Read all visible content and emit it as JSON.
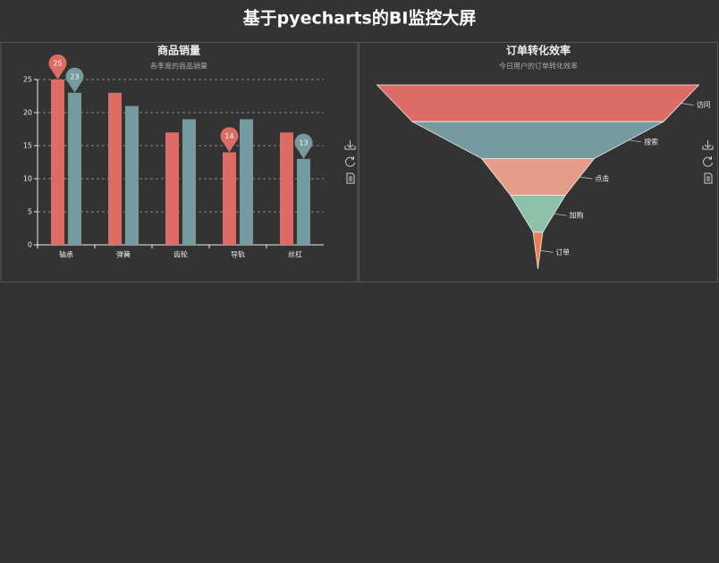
{
  "title": "基于pyecharts的BI监控大屏",
  "chart_data": [
    {
      "type": "bar",
      "title": "商品销量",
      "subtitle": "各季度的商品销量",
      "categories": [
        "轴承",
        "弹簧",
        "齿轮",
        "导轨",
        "丝杠"
      ],
      "series": [
        {
          "color": "#dd6b66",
          "values": [
            25,
            23,
            17,
            14,
            17
          ]
        },
        {
          "color": "#759aa0",
          "values": [
            23,
            21,
            19,
            19,
            13
          ]
        }
      ],
      "ylim": [
        0,
        25
      ],
      "yticks": [
        0,
        5,
        10,
        15,
        20,
        25
      ],
      "grid": true,
      "mark_points": [
        "max",
        "min"
      ]
    },
    {
      "type": "funnel",
      "title": "订单转化效率",
      "subtitle": "今日用户的订单转化效率",
      "categories": [
        "访问",
        "搜索",
        "点击",
        "加购",
        "订单"
      ],
      "values": [
        100,
        78,
        35,
        17,
        3
      ],
      "colors": [
        "#dd6b66",
        "#759aa0",
        "#e69d87",
        "#8dc1a9",
        "#ea7e53"
      ]
    }
  ]
}
